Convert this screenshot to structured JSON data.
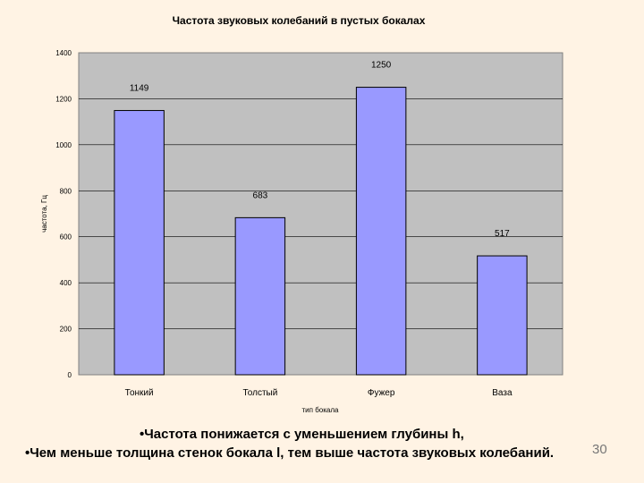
{
  "chart_data": {
    "type": "bar",
    "title": "Частота звуковых колебаний в пустых бокалах",
    "xlabel": "тип бокала",
    "ylabel": "частота, Гц",
    "categories": [
      "Тонкий",
      "Толстый",
      "Фужер",
      "Ваза"
    ],
    "values": [
      1149,
      683,
      1250,
      517
    ],
    "data_labels": [
      "1149",
      "683",
      "1250",
      "517"
    ],
    "ylim": [
      0,
      1400
    ],
    "yticks": [
      0,
      200,
      400,
      600,
      800,
      1000,
      1200,
      1400
    ],
    "grid": true,
    "legend": "none",
    "colors": {
      "bar": "#9999FF",
      "plot_bg": "#C0C0C0",
      "gridline": "#000000"
    }
  },
  "notes": {
    "line1": "•Частота понижается с уменьшением глубины h,",
    "line2": "•Чем меньше толщина стенок бокала l, тем выше частота звуковых колебаний."
  },
  "slide_number": "30"
}
